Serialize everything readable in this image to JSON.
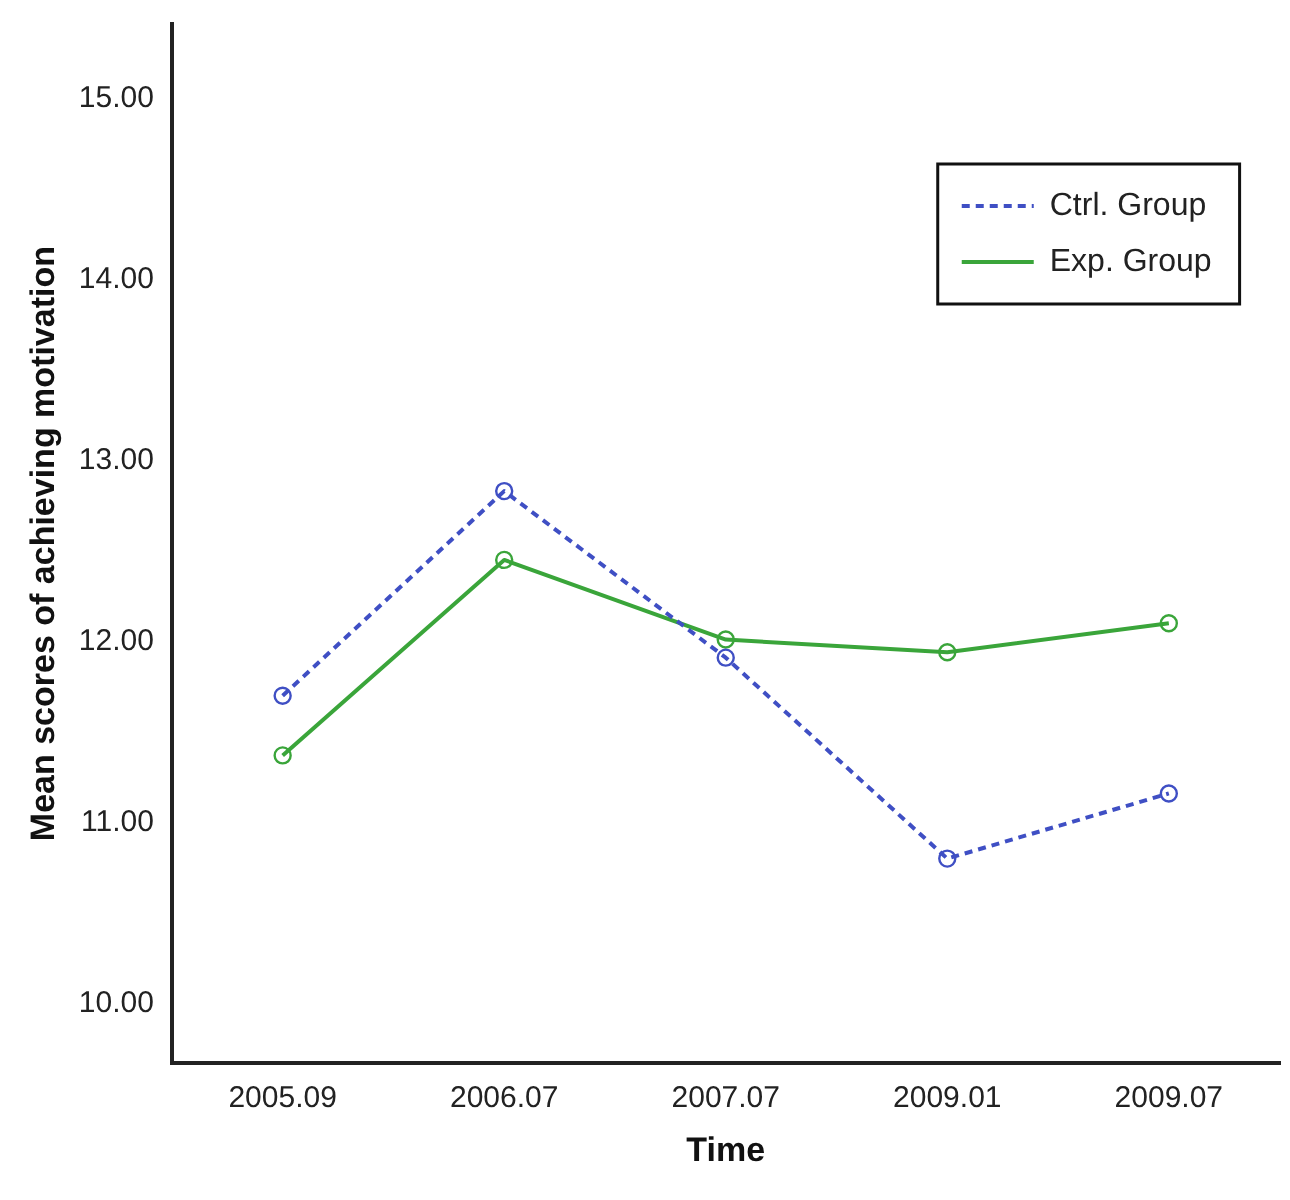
{
  "chart_data": {
    "type": "line",
    "xlabel": "Time",
    "ylabel": "Mean scores of achieving motivation",
    "categories": [
      "2005.09",
      "2006.07",
      "2007.07",
      "2009.01",
      "2009.07"
    ],
    "series": [
      {
        "name": "Ctrl. Group",
        "color": "#3f4fc4",
        "line_style": "dashed",
        "values": [
          11.7,
          12.83,
          11.91,
          10.8,
          11.16
        ]
      },
      {
        "name": "Exp. Group",
        "color": "#3aa53a",
        "line_style": "solid",
        "values": [
          11.37,
          12.45,
          12.01,
          11.94,
          12.1
        ]
      }
    ],
    "ylim": [
      9.67,
      15.41
    ],
    "yticks": [
      {
        "value": 10,
        "label": "10.00"
      },
      {
        "value": 11,
        "label": "11.00"
      },
      {
        "value": 12,
        "label": "12.00"
      },
      {
        "value": 13,
        "label": "13.00"
      },
      {
        "value": 14,
        "label": "14.00"
      },
      {
        "value": 15,
        "label": "15.00"
      }
    ],
    "grid": false,
    "legend": "top right",
    "marker": "circle"
  }
}
